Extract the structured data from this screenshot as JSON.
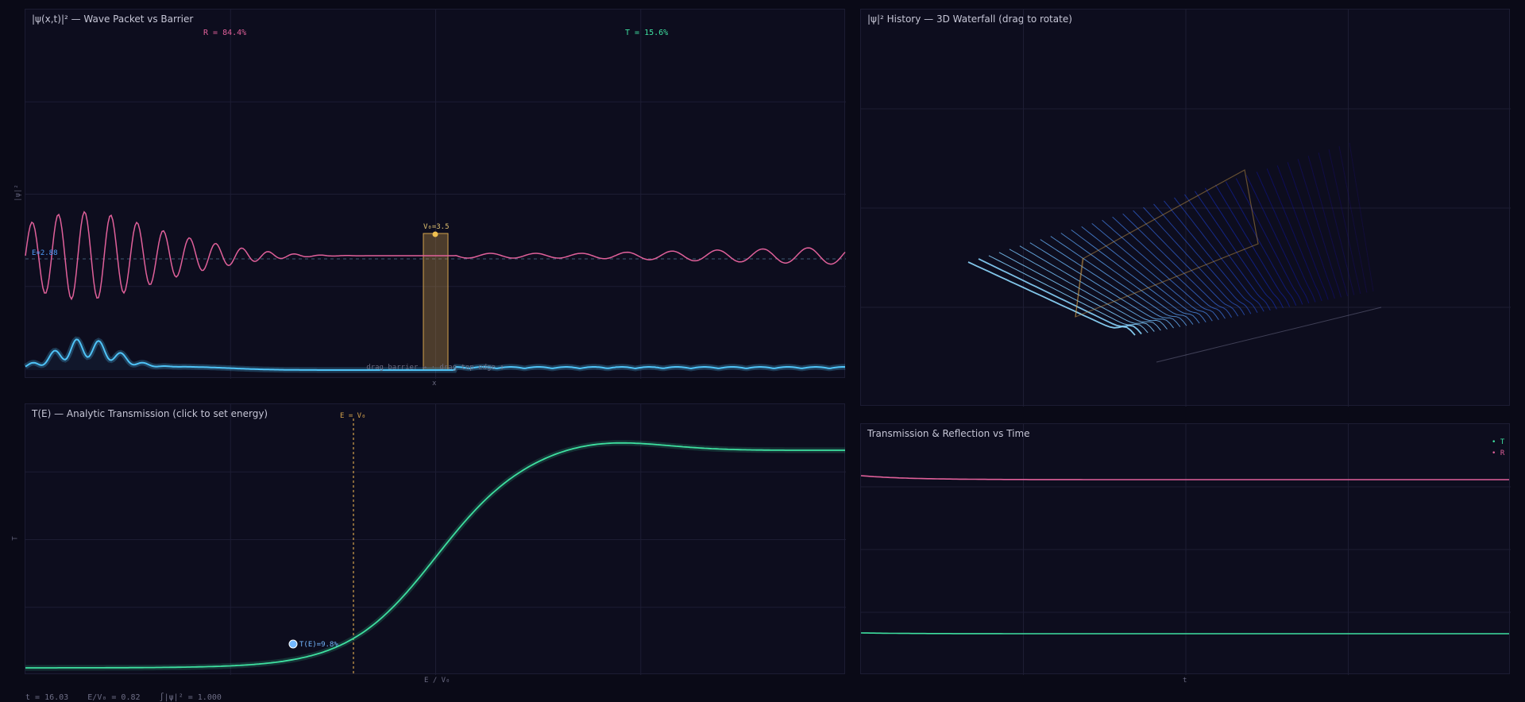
{
  "panels": {
    "wave": {
      "title": "|ψ(x,t)|² — Wave Packet vs Barrier",
      "reflection": "R = 84.4%",
      "transmission": "T = 15.6%",
      "barrier_label": "V₀=3.5",
      "energy_label": "E=2.88",
      "hint": "drag barrier ↔ · drag top edge ↕",
      "ylabel": "|ψ|²",
      "xlabel": "x"
    },
    "waterfall": {
      "title": "|ψ|² History — 3D Waterfall (drag to rotate)"
    },
    "te": {
      "title": "T(E) — Analytic Transmission (click to set energy)",
      "marker_label": "E = V₀",
      "point_label": "T(E)=9.8%",
      "ylabel": "T",
      "xlabel": "E / V₀"
    },
    "trt": {
      "title": "Transmission & Reflection vs Time",
      "legend_t": "• T",
      "legend_r": "• R",
      "xlabel": "t"
    }
  },
  "status": {
    "time": "t = 16.03",
    "ratio": "E/V₀ = 0.82",
    "norm": "∫|ψ|² = 1.000"
  },
  "colors": {
    "psi": "#4fc3f7",
    "reflected": "#e0609a",
    "barrier": "#d4a24c",
    "transmission_curve": "#3ee0a0",
    "energy_line": "#4fa0ff"
  }
}
